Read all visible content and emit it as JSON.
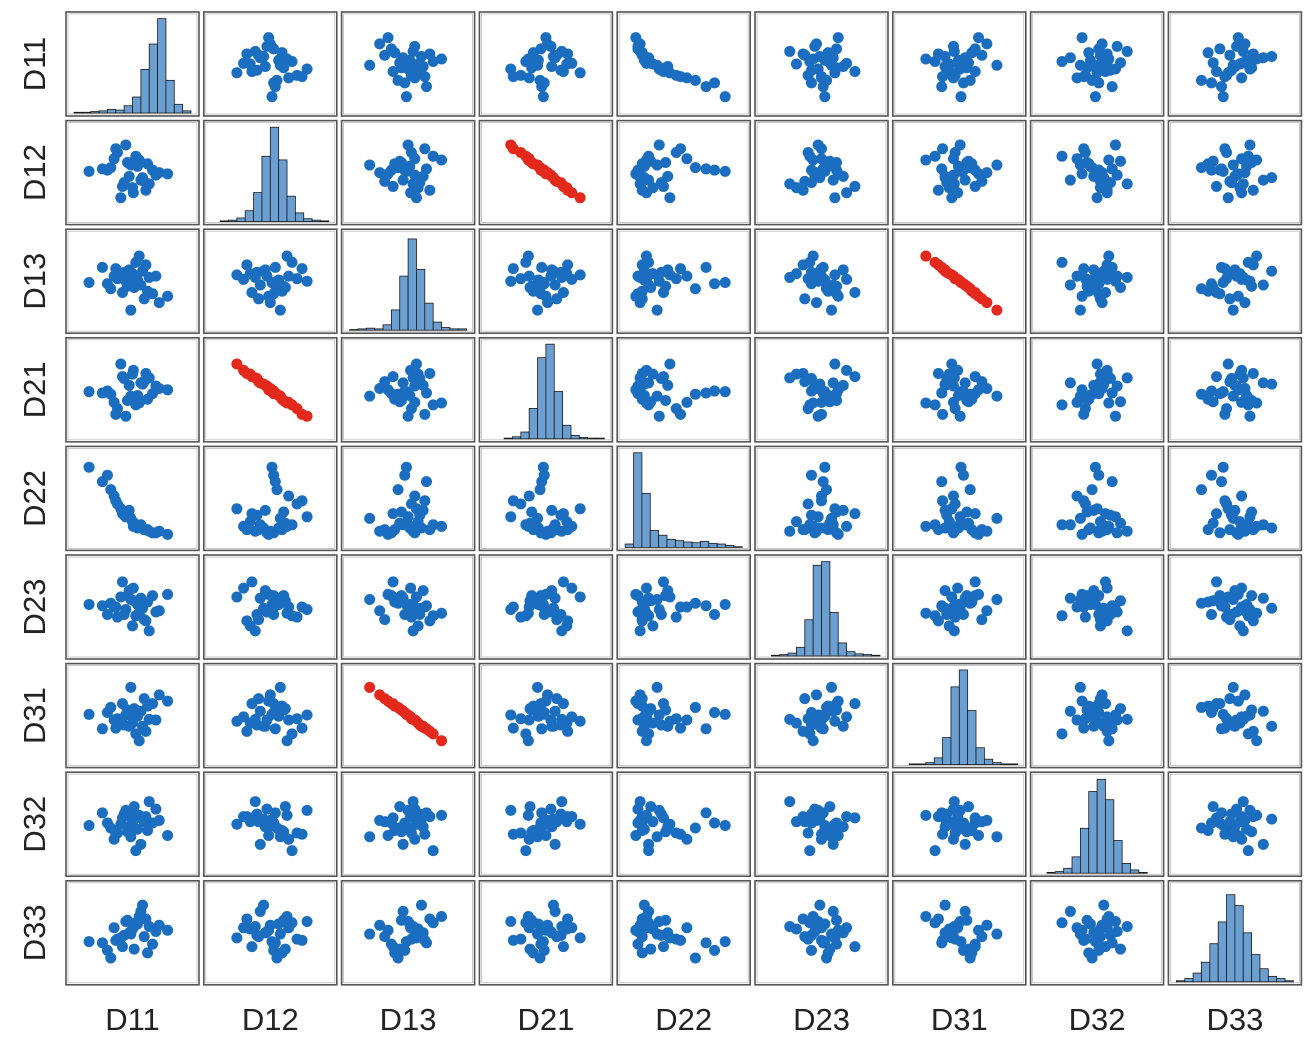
{
  "chart_data": {
    "type": "scatter_matrix",
    "point_color": "#1b6dbf",
    "highlight_color": "#e3281c",
    "hist_color": "#6b9fd1",
    "highlight_pairs": [
      [
        "D12",
        "D21"
      ],
      [
        "D13",
        "D31"
      ]
    ],
    "variables": [
      {
        "name": "D11",
        "lim": [
          -3.5,
          3.5
        ],
        "values": [
          0.3,
          -0.5,
          1.2,
          -1.1,
          0.8,
          0.1,
          -0.2,
          1.6,
          -0.9,
          0.5,
          -1.8,
          0.0,
          0.9,
          -0.4,
          2.1,
          -0.7,
          0.4,
          -1.3,
          1.0,
          -0.1,
          0.6,
          -2.6,
          0.2,
          -0.6,
          1.4,
          -0.3,
          0.7,
          -1.0,
          0.05,
          -1.5
        ],
        "histogram": {
          "bins": [
            -5,
            -4.5,
            -4,
            -3.5,
            -3,
            -2.5,
            -2,
            -1.5,
            -1,
            -0.5,
            0,
            0.5,
            1,
            1.5,
            2
          ],
          "counts": [
            1,
            1,
            2,
            3,
            5,
            4,
            10,
            22,
            60,
            95,
            130,
            45,
            12,
            3
          ],
          "ylim": [
            0,
            135
          ]
        }
      },
      {
        "name": "D12",
        "lim": [
          -3.5,
          3.5
        ],
        "values": [
          0.5,
          -0.8,
          0.2,
          1.1,
          -1.4,
          0.9,
          -0.3,
          0.0,
          1.6,
          -0.6,
          0.3,
          -1.2,
          0.7,
          2.2,
          -0.1,
          -2.0,
          1.0,
          0.4,
          -0.9,
          0.6,
          -0.4,
          0.1,
          1.3,
          -1.1,
          -0.2,
          0.8,
          -0.7,
          1.9,
          -1.6,
          0.2
        ],
        "histogram": {
          "bins": [
            -3.5,
            -3,
            -2.5,
            -2,
            -1.5,
            -1,
            -0.5,
            0,
            0.5,
            1,
            1.5,
            2,
            2.5,
            3,
            3.5
          ],
          "counts": [
            0,
            1,
            2,
            5,
            15,
            40,
            90,
            130,
            85,
            35,
            12,
            4,
            2,
            1
          ],
          "ylim": [
            0,
            135
          ]
        }
      },
      {
        "name": "D13",
        "lim": [
          -3.5,
          3.5
        ],
        "values": [
          0.1,
          0.7,
          -1.0,
          0.4,
          1.3,
          -0.5,
          0.9,
          -1.7,
          0.2,
          -0.3,
          1.1,
          0.6,
          -0.8,
          0.0,
          -1.2,
          0.5,
          2.0,
          -0.6,
          0.3,
          -2.3,
          0.8,
          -0.1,
          1.5,
          -0.9,
          0.4,
          -0.4,
          -1.4,
          1.0,
          0.15,
          -0.2
        ],
        "histogram": {
          "bins": [
            -3.5,
            -3,
            -2.5,
            -2,
            -1.5,
            -1,
            -0.5,
            0,
            0.5,
            1,
            1.5,
            2,
            2.5,
            3,
            3.5
          ],
          "counts": [
            1,
            2,
            3,
            2,
            8,
            30,
            80,
            135,
            90,
            40,
            12,
            4,
            2,
            2
          ],
          "ylim": [
            0,
            145
          ]
        }
      },
      {
        "name": "D21",
        "lim": [
          -3.5,
          3.5
        ],
        "values": [
          -0.45,
          0.9,
          -0.3,
          -1.0,
          1.3,
          -0.95,
          0.35,
          0.1,
          -1.5,
          0.55,
          -0.25,
          1.25,
          -0.75,
          -2.1,
          0.0,
          2.05,
          -1.05,
          -0.35,
          0.95,
          -0.5,
          0.45,
          -0.15,
          -1.2,
          1.05,
          0.3,
          -0.85,
          0.65,
          -1.95,
          1.55,
          -0.1
        ],
        "histogram": {
          "bins": [
            -3.5,
            -3,
            -2.5,
            -2,
            -1.5,
            -1,
            -0.5,
            0,
            0.5,
            1,
            1.5,
            2,
            2.5,
            3,
            3.5
          ],
          "counts": [
            0,
            0,
            1,
            3,
            10,
            45,
            120,
            140,
            70,
            20,
            5,
            2,
            1,
            1
          ],
          "ylim": [
            0,
            145
          ]
        }
      },
      {
        "name": "D22",
        "lim": [
          -1.5,
          4
        ],
        "values": [
          -0.6,
          0.2,
          -0.9,
          1.4,
          -0.7,
          -0.3,
          0.5,
          -0.8,
          0.9,
          -0.4,
          2.3,
          -0.2,
          -0.7,
          0.1,
          -1.0,
          0.6,
          -0.5,
          1.8,
          -0.8,
          0.0,
          -0.6,
          3.2,
          -0.4,
          0.3,
          -0.9,
          0.4,
          -0.7,
          1.1,
          -0.5,
          2.7
        ],
        "histogram": {
          "bins": [
            -1,
            -0.5,
            0,
            0.5,
            1,
            1.5,
            2,
            2.5,
            3,
            3.5,
            4,
            4.5,
            5,
            5.5,
            6
          ],
          "counts": [
            5,
            140,
            80,
            25,
            18,
            12,
            10,
            8,
            7,
            9,
            6,
            5,
            3,
            1
          ],
          "ylim": [
            0,
            145
          ]
        }
      },
      {
        "name": "D23",
        "lim": [
          -3.5,
          3.5
        ],
        "values": [
          0.2,
          -0.6,
          0.9,
          0.0,
          -1.1,
          0.5,
          1.3,
          -0.3,
          -0.8,
          0.7,
          0.1,
          -1.5,
          0.4,
          -0.2,
          1.0,
          0.8,
          -0.5,
          0.3,
          -1.9,
          0.6,
          -0.1,
          0.2,
          -0.7,
          2.0,
          -0.4,
          0.9,
          -1.0,
          0.0,
          1.5,
          -0.6
        ],
        "histogram": {
          "bins": [
            -3.5,
            -3,
            -2.5,
            -2,
            -1.5,
            -1,
            -0.5,
            0,
            0.5,
            1,
            1.5,
            2,
            2.5,
            3,
            3.5
          ],
          "counts": [
            0,
            1,
            2,
            4,
            12,
            50,
            125,
            130,
            60,
            18,
            6,
            3,
            2,
            1
          ],
          "ylim": [
            0,
            135
          ]
        }
      },
      {
        "name": "D31",
        "lim": [
          -3.5,
          3.5
        ],
        "values": [
          -0.05,
          -0.75,
          0.95,
          -0.35,
          -1.25,
          0.55,
          -0.85,
          1.65,
          -0.25,
          0.35,
          -1.05,
          -0.6,
          0.75,
          0.05,
          1.15,
          -0.45,
          -2.0,
          0.65,
          -0.3,
          2.25,
          -0.85,
          0.1,
          -1.45,
          0.95,
          -0.35,
          0.45,
          1.35,
          -1.0,
          -0.1,
          0.25
        ],
        "histogram": {
          "bins": [
            -3.5,
            -3,
            -2.5,
            -2,
            -1.5,
            -1,
            -0.5,
            0,
            0.5,
            1,
            1.5,
            2,
            2.5,
            3,
            3.5
          ],
          "counts": [
            0,
            1,
            1,
            3,
            10,
            40,
            115,
            140,
            80,
            25,
            8,
            3,
            1,
            1
          ],
          "ylim": [
            0,
            145
          ]
        }
      },
      {
        "name": "D32",
        "lim": [
          -3.5,
          3.5
        ],
        "values": [
          -0.4,
          0.8,
          0.1,
          -1.2,
          0.6,
          1.4,
          -0.2,
          0.3,
          -0.7,
          -1.6,
          0.9,
          0.2,
          -0.5,
          1.1,
          -0.9,
          0.0,
          0.7,
          -0.3,
          1.8,
          -1.0,
          0.4,
          -0.1,
          -2.1,
          0.5,
          1.2,
          -0.6,
          0.2,
          -0.8,
          0.6,
          0.1
        ],
        "histogram": {
          "bins": [
            -3.5,
            -3,
            -2.5,
            -2,
            -1.5,
            -1,
            -0.5,
            0,
            0.5,
            1,
            1.5,
            2,
            2.5,
            3,
            3.5
          ],
          "counts": [
            0,
            1,
            2,
            6,
            20,
            55,
            100,
            115,
            90,
            40,
            12,
            4,
            1,
            0
          ],
          "ylim": [
            0,
            120
          ]
        }
      },
      {
        "name": "D33",
        "lim": [
          -3.5,
          3.5
        ],
        "values": [
          0.7,
          -0.2,
          -0.9,
          0.4,
          1.1,
          -1.3,
          0.0,
          0.6,
          -0.5,
          1.7,
          -0.8,
          0.3,
          -1.6,
          0.9,
          0.2,
          -0.4,
          1.3,
          -2.0,
          0.5,
          -0.1,
          2.2,
          -0.7,
          0.8,
          -1.1,
          0.1,
          1.0,
          -0.3,
          -0.6,
          0.4,
          -1.4
        ],
        "histogram": {
          "bins": [
            -3.5,
            -3,
            -2.5,
            -2,
            -1.5,
            -1,
            -0.5,
            0,
            0.5,
            1,
            1.5,
            2,
            2.5,
            3,
            3.5
          ],
          "counts": [
            1,
            3,
            8,
            18,
            35,
            55,
            80,
            70,
            45,
            25,
            12,
            5,
            3,
            1
          ],
          "ylim": [
            0,
            90
          ]
        }
      }
    ]
  }
}
